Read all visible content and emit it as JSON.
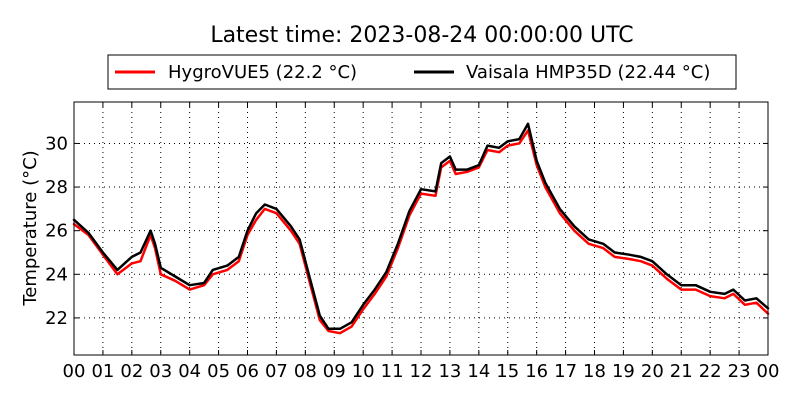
{
  "chart_data": {
    "type": "line",
    "title": "Latest time: 2023-08-24 00:00:00 UTC",
    "ylabel": "Temperature (°C)",
    "xlabel": "",
    "xlim": [
      0,
      24
    ],
    "ylim": [
      20.3,
      31.9
    ],
    "x_ticks": [
      "00",
      "01",
      "02",
      "03",
      "04",
      "05",
      "06",
      "07",
      "08",
      "09",
      "10",
      "11",
      "12",
      "13",
      "14",
      "15",
      "16",
      "17",
      "18",
      "19",
      "20",
      "21",
      "22",
      "23",
      "00"
    ],
    "y_ticks": [
      22,
      24,
      26,
      28,
      30
    ],
    "grid": true,
    "legend_position": "top-center, above plot",
    "series": [
      {
        "name": "HygroVUE5 (22.2 °C)",
        "color": "#ff0000",
        "points": [
          [
            0.0,
            26.3
          ],
          [
            0.5,
            25.8
          ],
          [
            1.0,
            24.9
          ],
          [
            1.5,
            24.0
          ],
          [
            2.0,
            24.5
          ],
          [
            2.3,
            24.6
          ],
          [
            2.65,
            25.8
          ],
          [
            2.8,
            25.2
          ],
          [
            3.0,
            24.0
          ],
          [
            3.5,
            23.7
          ],
          [
            4.0,
            23.3
          ],
          [
            4.5,
            23.5
          ],
          [
            4.8,
            24.0
          ],
          [
            5.3,
            24.2
          ],
          [
            5.7,
            24.6
          ],
          [
            6.0,
            25.8
          ],
          [
            6.3,
            26.5
          ],
          [
            6.6,
            27.0
          ],
          [
            7.0,
            26.8
          ],
          [
            7.5,
            26.0
          ],
          [
            7.8,
            25.4
          ],
          [
            8.2,
            23.4
          ],
          [
            8.5,
            21.9
          ],
          [
            8.8,
            21.4
          ],
          [
            9.2,
            21.3
          ],
          [
            9.6,
            21.6
          ],
          [
            10.0,
            22.4
          ],
          [
            10.4,
            23.1
          ],
          [
            10.8,
            23.9
          ],
          [
            11.2,
            25.2
          ],
          [
            11.6,
            26.7
          ],
          [
            12.0,
            27.7
          ],
          [
            12.5,
            27.6
          ],
          [
            12.7,
            28.9
          ],
          [
            13.0,
            29.2
          ],
          [
            13.2,
            28.6
          ],
          [
            13.6,
            28.7
          ],
          [
            14.0,
            28.9
          ],
          [
            14.3,
            29.7
          ],
          [
            14.7,
            29.6
          ],
          [
            15.0,
            29.9
          ],
          [
            15.4,
            30.0
          ],
          [
            15.7,
            30.6
          ],
          [
            16.0,
            29.0
          ],
          [
            16.3,
            28.0
          ],
          [
            16.8,
            26.8
          ],
          [
            17.3,
            26.0
          ],
          [
            17.8,
            25.4
          ],
          [
            18.3,
            25.2
          ],
          [
            18.7,
            24.8
          ],
          [
            19.2,
            24.7
          ],
          [
            19.6,
            24.6
          ],
          [
            20.0,
            24.4
          ],
          [
            20.5,
            23.8
          ],
          [
            21.0,
            23.3
          ],
          [
            21.5,
            23.3
          ],
          [
            22.0,
            23.0
          ],
          [
            22.5,
            22.9
          ],
          [
            22.8,
            23.1
          ],
          [
            23.2,
            22.6
          ],
          [
            23.6,
            22.7
          ],
          [
            24.0,
            22.2
          ]
        ]
      },
      {
        "name": "Vaisala HMP35D (22.44 °C)",
        "color": "#000000",
        "points": [
          [
            0.0,
            26.5
          ],
          [
            0.5,
            25.9
          ],
          [
            1.0,
            25.0
          ],
          [
            1.5,
            24.2
          ],
          [
            2.0,
            24.8
          ],
          [
            2.3,
            25.0
          ],
          [
            2.65,
            26.0
          ],
          [
            2.8,
            25.4
          ],
          [
            3.0,
            24.3
          ],
          [
            3.5,
            23.9
          ],
          [
            4.0,
            23.5
          ],
          [
            4.5,
            23.6
          ],
          [
            4.8,
            24.2
          ],
          [
            5.3,
            24.4
          ],
          [
            5.7,
            24.8
          ],
          [
            6.0,
            26.0
          ],
          [
            6.3,
            26.8
          ],
          [
            6.6,
            27.2
          ],
          [
            7.0,
            27.0
          ],
          [
            7.5,
            26.2
          ],
          [
            7.8,
            25.6
          ],
          [
            8.2,
            23.6
          ],
          [
            8.5,
            22.1
          ],
          [
            8.8,
            21.5
          ],
          [
            9.2,
            21.5
          ],
          [
            9.6,
            21.8
          ],
          [
            10.0,
            22.6
          ],
          [
            10.4,
            23.3
          ],
          [
            10.8,
            24.1
          ],
          [
            11.2,
            25.4
          ],
          [
            11.6,
            26.9
          ],
          [
            12.0,
            27.9
          ],
          [
            12.5,
            27.8
          ],
          [
            12.7,
            29.1
          ],
          [
            13.0,
            29.4
          ],
          [
            13.2,
            28.8
          ],
          [
            13.6,
            28.8
          ],
          [
            14.0,
            29.0
          ],
          [
            14.3,
            29.9
          ],
          [
            14.7,
            29.8
          ],
          [
            15.0,
            30.1
          ],
          [
            15.4,
            30.2
          ],
          [
            15.7,
            30.9
          ],
          [
            16.0,
            29.2
          ],
          [
            16.3,
            28.2
          ],
          [
            16.8,
            27.0
          ],
          [
            17.3,
            26.2
          ],
          [
            17.8,
            25.6
          ],
          [
            18.3,
            25.4
          ],
          [
            18.7,
            25.0
          ],
          [
            19.2,
            24.9
          ],
          [
            19.6,
            24.8
          ],
          [
            20.0,
            24.6
          ],
          [
            20.5,
            24.0
          ],
          [
            21.0,
            23.5
          ],
          [
            21.5,
            23.5
          ],
          [
            22.0,
            23.2
          ],
          [
            22.5,
            23.1
          ],
          [
            22.8,
            23.3
          ],
          [
            23.2,
            22.8
          ],
          [
            23.6,
            22.9
          ],
          [
            24.0,
            22.44
          ]
        ]
      }
    ]
  }
}
